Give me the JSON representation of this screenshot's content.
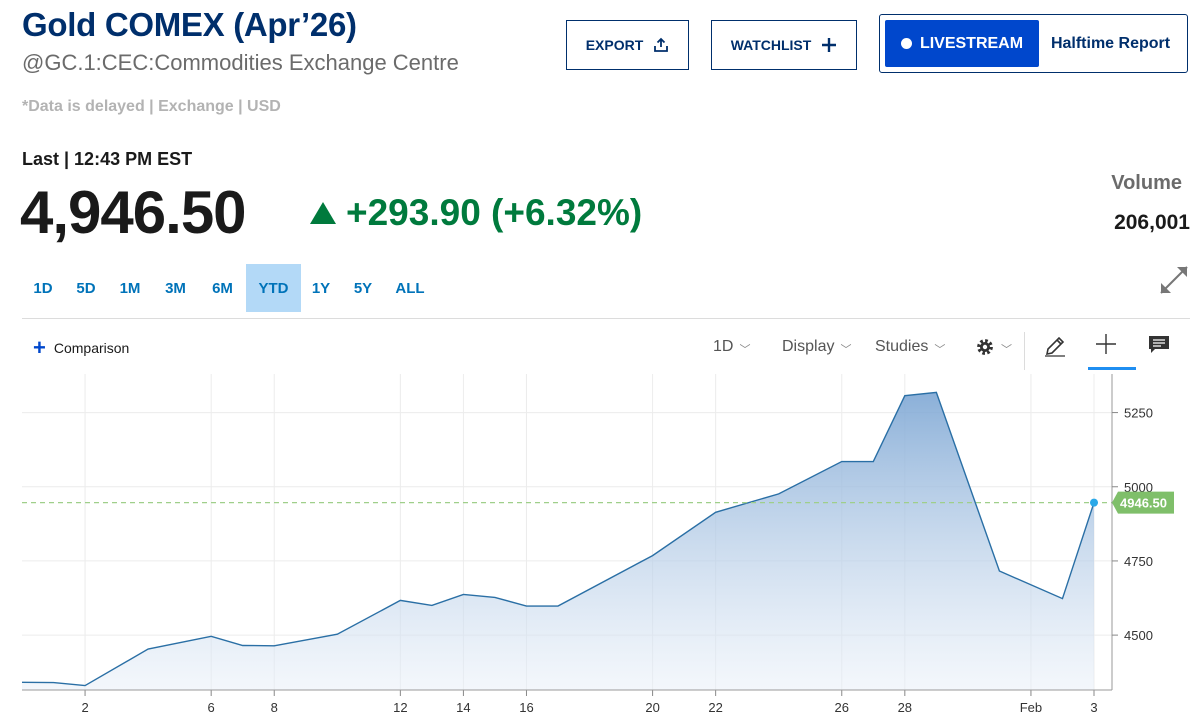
{
  "header": {
    "title": "Gold COMEX (Apr’26)",
    "subtitle": "@GC.1:CEC:Commodities Exchange Centre",
    "delayed_note": "*Data is delayed | Exchange | USD"
  },
  "actions": {
    "export_label": "EXPORT",
    "watchlist_label": "WATCHLIST",
    "livestream_label": "LIVESTREAM",
    "halftime_label": "Halftime Report"
  },
  "quote": {
    "last_label": "Last | 12:43 PM EST",
    "price": "4,946.50",
    "change": "+293.90 (+6.32%)",
    "volume_label": "Volume",
    "volume_value": "206,001"
  },
  "ranges": [
    "1D",
    "5D",
    "1M",
    "3M",
    "6M",
    "YTD",
    "1Y",
    "5Y",
    "ALL"
  ],
  "active_range": "YTD",
  "toolbar": {
    "comparison_label": "Comparison",
    "interval_label": "1D",
    "display_label": "Display",
    "studies_label": "Studies"
  },
  "colors": {
    "title": "#002f6c",
    "accent": "#0047cc",
    "up": "#007a3d",
    "line": "#2a6fa5",
    "price_tag": "#7fbf6a",
    "dashed": "#9fcf8a"
  },
  "icons": [
    "share-icon",
    "plus-icon",
    "live-dot-icon",
    "expand-icon",
    "gear-icon",
    "pencil-icon",
    "crosshair-icon",
    "comment-icon"
  ],
  "chart_data": {
    "type": "area",
    "x_ticks": [
      "2",
      "6",
      "8",
      "12",
      "14",
      "16",
      "20",
      "22",
      "26",
      "28",
      "Feb",
      "3"
    ],
    "y_ticks": [
      4500,
      4750,
      5000,
      5250
    ],
    "ylim": [
      4315,
      5380
    ],
    "last_value_tag": "4946.50",
    "series": [
      {
        "x": [
          "Dec 31",
          "Jan 1",
          "Jan 2",
          "Jan 4",
          "Jan 6",
          "Jan 7",
          "Jan 8",
          "Jan 10",
          "Jan 12",
          "Jan 13",
          "Jan 14",
          "Jan 15",
          "Jan 16",
          "Jan 17",
          "Jan 20",
          "Jan 22",
          "Jan 24",
          "Jan 26",
          "Jan 27",
          "Jan 28",
          "Jan 29",
          "Jan 31",
          "Feb 2",
          "Feb 3"
        ],
        "values": [
          4341,
          4340,
          4330,
          4453,
          4496,
          4465,
          4464,
          4503,
          4617,
          4600,
          4637,
          4627,
          4598,
          4598,
          4768,
          4914,
          4976,
          5085,
          5085,
          5307,
          5318,
          4716,
          4623,
          4946.5
        ]
      }
    ]
  }
}
